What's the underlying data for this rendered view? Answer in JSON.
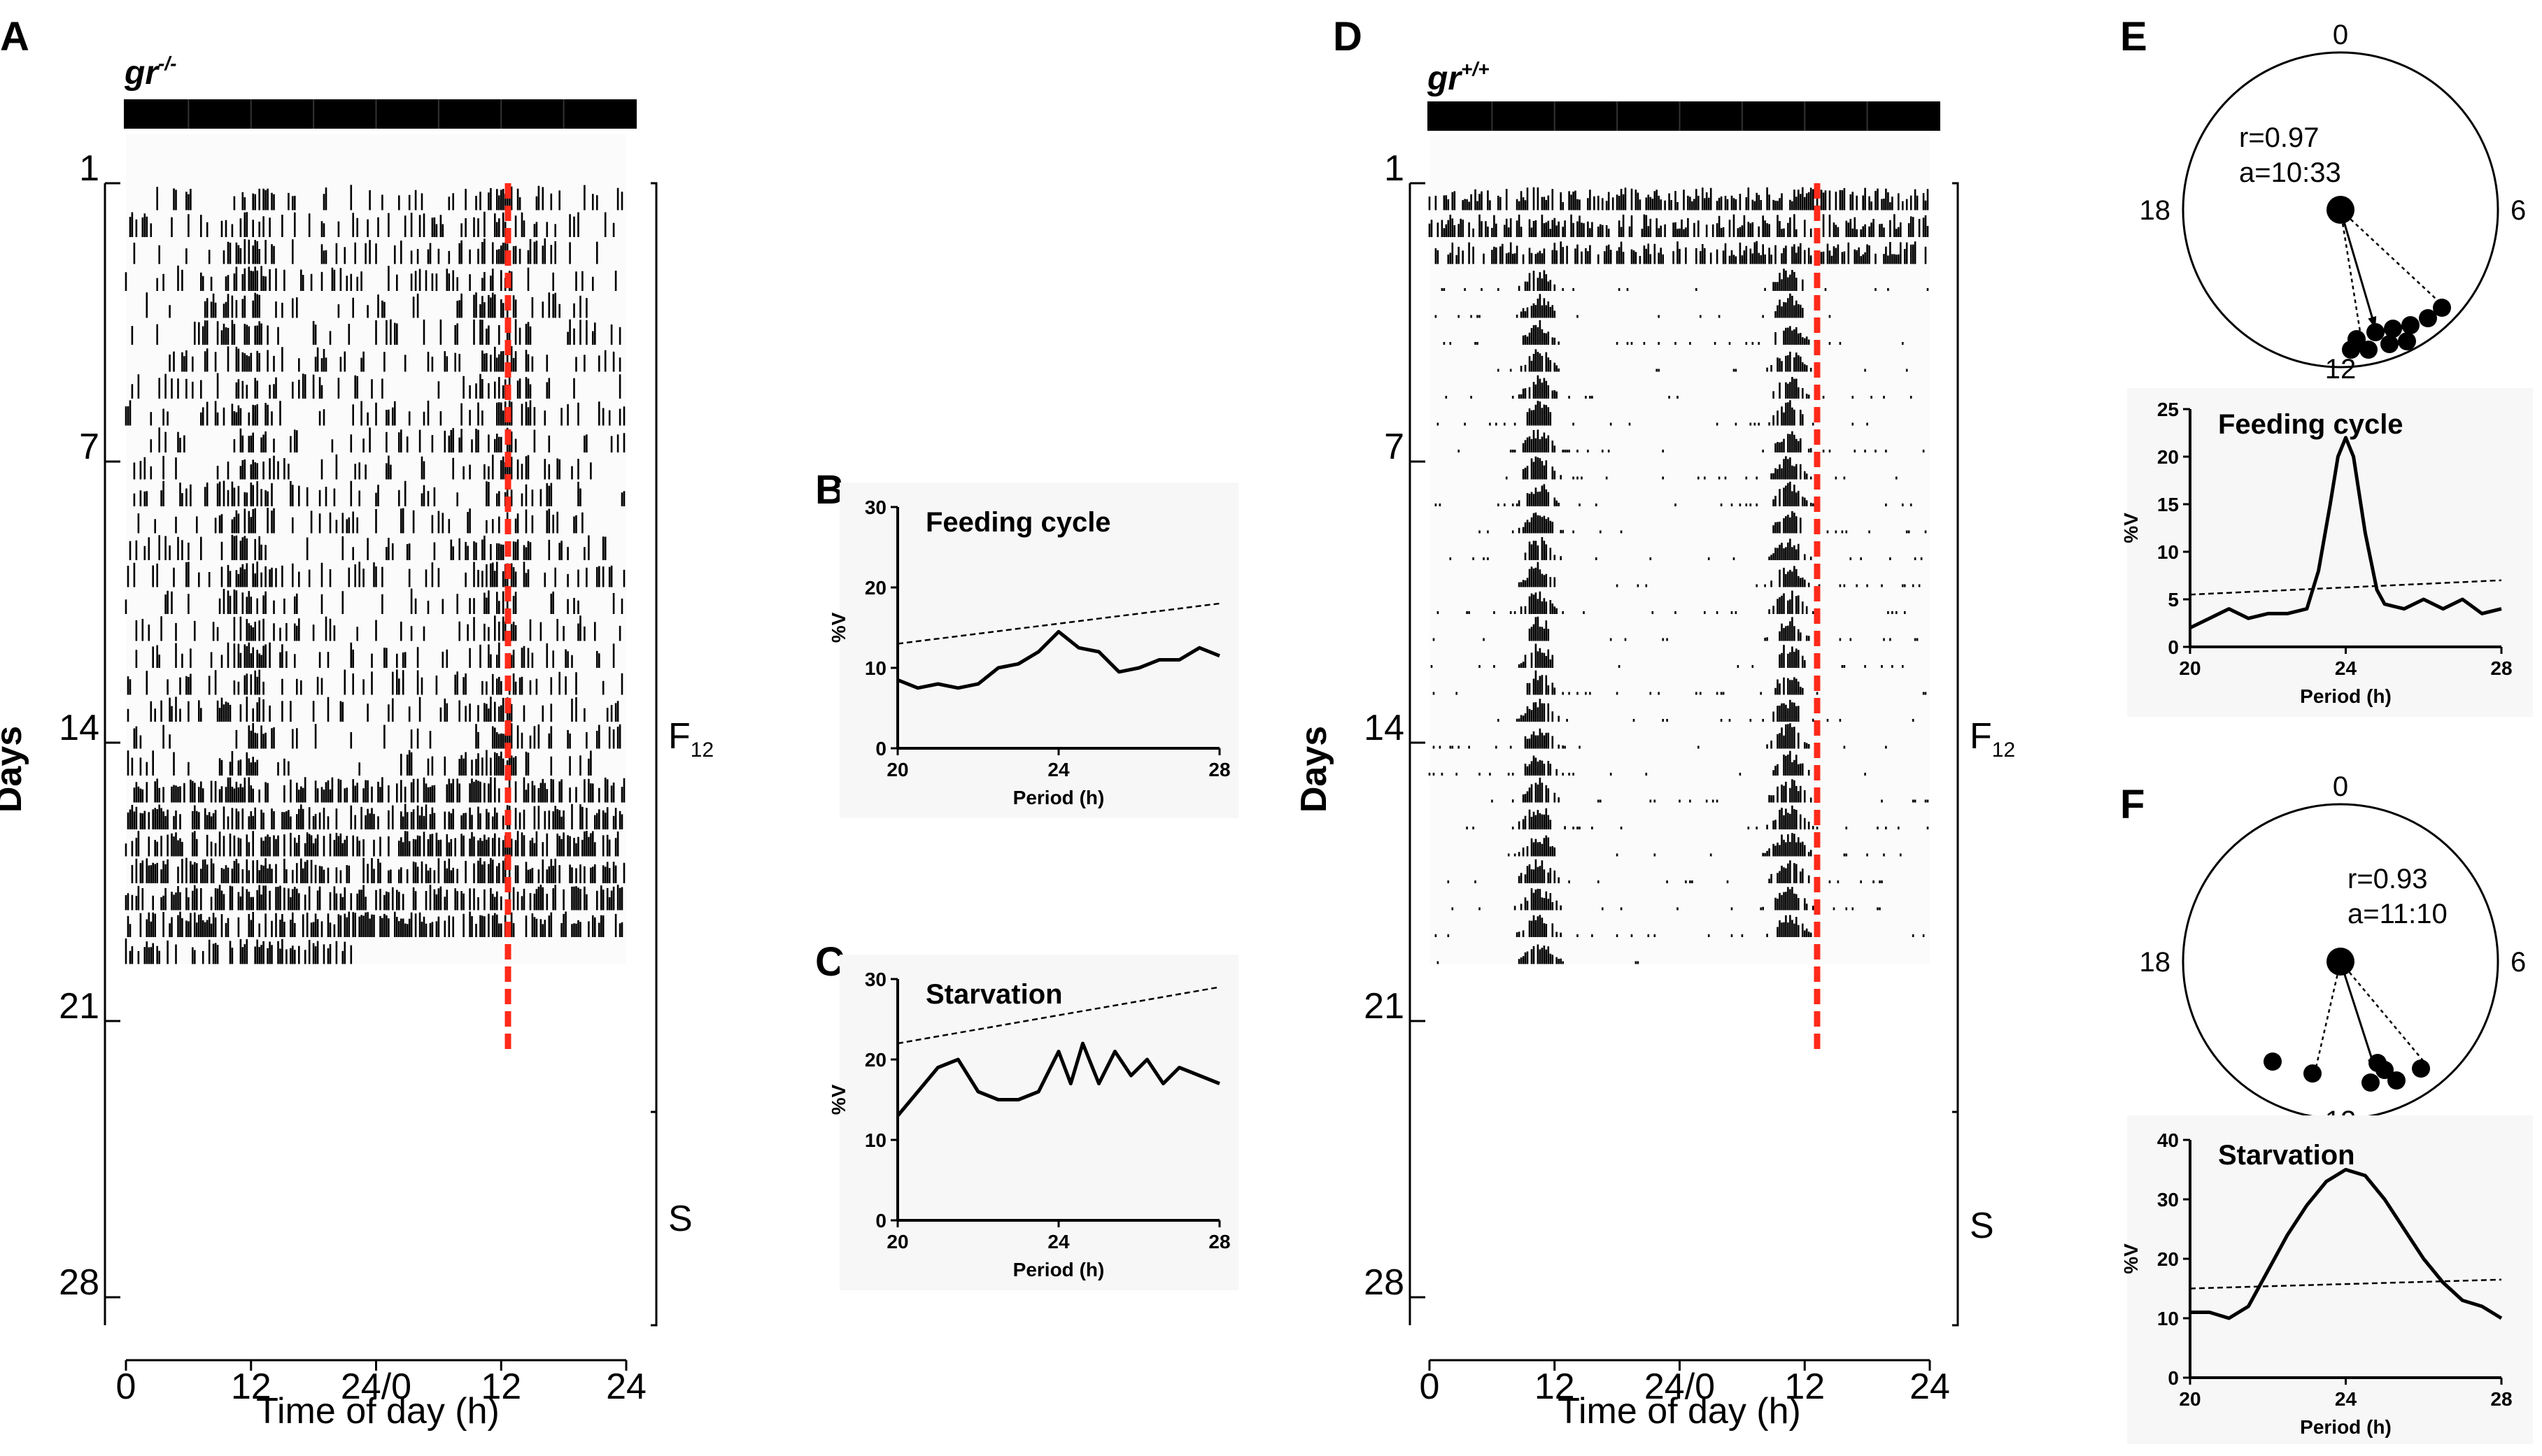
{
  "panels": {
    "A": {
      "letter": "A",
      "genotype": "gr",
      "genotype_sup": "-/-"
    },
    "B": {
      "letter": "B"
    },
    "C": {
      "letter": "C"
    },
    "D": {
      "letter": "D",
      "genotype": "gr",
      "genotype_sup": "+/+"
    },
    "E": {
      "letter": "E"
    },
    "F": {
      "letter": "F"
    }
  },
  "actogram": {
    "ylabel": "Days",
    "xlabel": "Time of day (h)",
    "day_ticks": [
      "1",
      "7",
      "14",
      "21",
      "28"
    ],
    "x_ticks": [
      "0",
      "12",
      "24/0",
      "12",
      "24"
    ],
    "condition_feeding": "F",
    "condition_feeding_sub": "12",
    "condition_starvation": "S",
    "phase_line_color": "#ff2a1a",
    "ld_bar_color": "#000000"
  },
  "circular": {
    "hours": [
      "0",
      "6",
      "12",
      "18"
    ],
    "E": {
      "r": "r=0.97",
      "a": "a=10:33"
    },
    "F": {
      "r": "r=0.93",
      "a": "a=11:10"
    }
  },
  "chart_data": [
    {
      "id": "B",
      "type": "line",
      "title": "Feeding cycle",
      "xlabel": "Period (h)",
      "ylabel": "%V",
      "xlim": [
        20,
        28
      ],
      "ylim": [
        0,
        30
      ],
      "xticks": [
        "20",
        "24",
        "28"
      ],
      "yticks": [
        "0",
        "10",
        "20",
        "30"
      ],
      "x": [
        20,
        20.5,
        21,
        21.5,
        22,
        22.5,
        23,
        23.5,
        24,
        24.5,
        25,
        25.5,
        26,
        26.5,
        27,
        27.5,
        28
      ],
      "values": [
        8.5,
        7.5,
        8,
        7.5,
        8,
        10,
        10.5,
        12,
        14.5,
        12.5,
        12,
        9.5,
        10,
        11,
        11,
        12.5,
        11.5
      ],
      "threshold": [
        13,
        18
      ]
    },
    {
      "id": "C",
      "type": "line",
      "title": "Starvation",
      "xlabel": "Period (h)",
      "ylabel": "%V",
      "xlim": [
        20,
        28
      ],
      "ylim": [
        0,
        30
      ],
      "xticks": [
        "20",
        "24",
        "28"
      ],
      "yticks": [
        "0",
        "10",
        "20",
        "30"
      ],
      "x": [
        20,
        20.5,
        21,
        21.5,
        22,
        22.5,
        23,
        23.5,
        24,
        24.3,
        24.6,
        25,
        25.4,
        25.8,
        26.2,
        26.6,
        27,
        27.5,
        28
      ],
      "values": [
        13,
        16,
        19,
        20,
        16,
        15,
        15,
        16,
        21,
        17,
        22,
        17,
        21,
        18,
        20,
        17,
        19,
        18,
        17
      ],
      "threshold": [
        22,
        29
      ]
    },
    {
      "id": "E",
      "type": "line",
      "title": "Feeding cycle",
      "xlabel": "Period (h)",
      "ylabel": "%V",
      "xlim": [
        20,
        28
      ],
      "ylim": [
        0,
        25
      ],
      "xticks": [
        "20",
        "24",
        "28"
      ],
      "yticks": [
        "0",
        "5",
        "10",
        "15",
        "20",
        "25"
      ],
      "x": [
        20,
        20.5,
        21,
        21.5,
        22,
        22.5,
        23,
        23.3,
        23.6,
        23.8,
        24,
        24.2,
        24.5,
        24.8,
        25,
        25.5,
        26,
        26.5,
        27,
        27.5,
        28
      ],
      "values": [
        2,
        3,
        4,
        3,
        3.5,
        3.5,
        4,
        8,
        15,
        20,
        22,
        20,
        12,
        6,
        4.5,
        4,
        5,
        4,
        5,
        3.5,
        4
      ],
      "threshold": [
        5.5,
        7
      ]
    },
    {
      "id": "F",
      "type": "line",
      "title": "Starvation",
      "xlabel": "Period (h)",
      "ylabel": "%V",
      "xlim": [
        20,
        28
      ],
      "ylim": [
        0,
        40
      ],
      "xticks": [
        "20",
        "24",
        "28"
      ],
      "yticks": [
        "0",
        "10",
        "20",
        "30",
        "40"
      ],
      "x": [
        20,
        20.5,
        21,
        21.5,
        22,
        22.5,
        23,
        23.5,
        24,
        24.5,
        25,
        25.5,
        26,
        26.5,
        27,
        27.5,
        28
      ],
      "values": [
        11,
        11,
        10,
        12,
        18,
        24,
        29,
        33,
        35,
        34,
        30,
        25,
        20,
        16,
        13,
        12,
        10
      ],
      "threshold": [
        15,
        16.5
      ]
    }
  ]
}
